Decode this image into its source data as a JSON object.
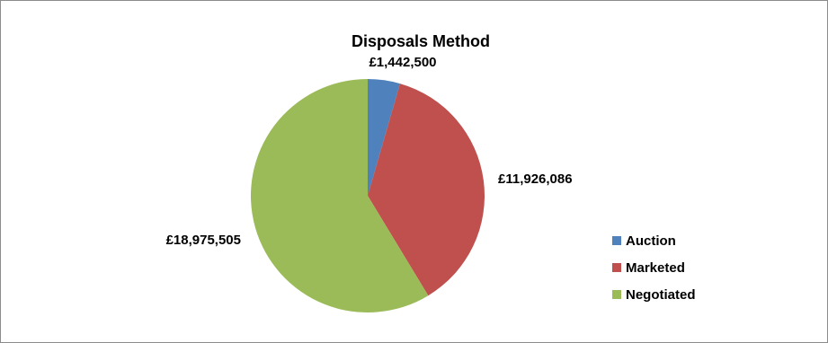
{
  "chart_data": {
    "type": "pie",
    "title": "Disposals Method",
    "categories": [
      "Auction",
      "Marketed",
      "Negotiated"
    ],
    "values": [
      1442500,
      11926086,
      18975505
    ],
    "data_labels": [
      "£1,442,500",
      "£11,926,086",
      "£18,975,505"
    ],
    "colors": [
      "#4f81bd",
      "#c0504d",
      "#9bbb59"
    ],
    "legend_position": "right"
  }
}
